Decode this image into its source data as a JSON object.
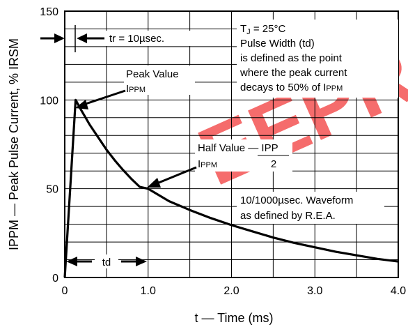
{
  "chart_data": {
    "type": "line",
    "title": "",
    "xlabel": "t — Time (ms)",
    "ylabel": "IPPM — Peak Pulse Current, % IRSM",
    "xlim": [
      0,
      4.0
    ],
    "ylim": [
      0,
      150
    ],
    "x_ticks": [
      "0",
      "1.0",
      "2.0",
      "3.0",
      "4.0"
    ],
    "y_ticks": [
      "0",
      "50",
      "100",
      "150"
    ],
    "grid": true,
    "series": [
      {
        "x": [
          0,
          0.13,
          0.2,
          0.3,
          0.4,
          0.5,
          0.6,
          0.7,
          0.8,
          0.9,
          1.0,
          1.25,
          1.5,
          1.75,
          2.0,
          2.25,
          2.5,
          2.75,
          3.0,
          3.25,
          3.5,
          3.75,
          4.0
        ],
        "y": [
          0,
          100,
          94,
          86,
          79,
          72,
          66,
          60.5,
          55.5,
          51,
          50,
          43,
          38,
          33.5,
          29.5,
          26,
          22.5,
          19.5,
          17,
          14.5,
          12.5,
          10.5,
          9
        ]
      }
    ],
    "annotations": {
      "tr": "tr = 10µsec.",
      "peak_value": "Peak Value",
      "peak_symbol": "I",
      "peak_symbol_sub": "PPM",
      "conditions_tj": "T",
      "conditions_tj_sub": "J",
      "conditions_tj_value": " = 25°C",
      "pulse_width_line1": "Pulse Width (td)",
      "pulse_width_line2": "is defined as the point",
      "pulse_width_line3": "where the peak current",
      "pulse_width_line4": "decays to 50% of I",
      "pulse_width_line4_sub": "PPM",
      "half_value": "Half Value — IPP",
      "half_symbol": "I",
      "half_symbol_sub": "PPM",
      "half_denominator": "2",
      "waveform_line1": "10/1000µsec. Waveform",
      "waveform_line2": "as defined by R.E.A.",
      "td": "td",
      "watermark": "EEPRO"
    },
    "colors": {
      "curve": "#000000",
      "grid": "#000000",
      "watermark": "#f23b3b"
    }
  }
}
